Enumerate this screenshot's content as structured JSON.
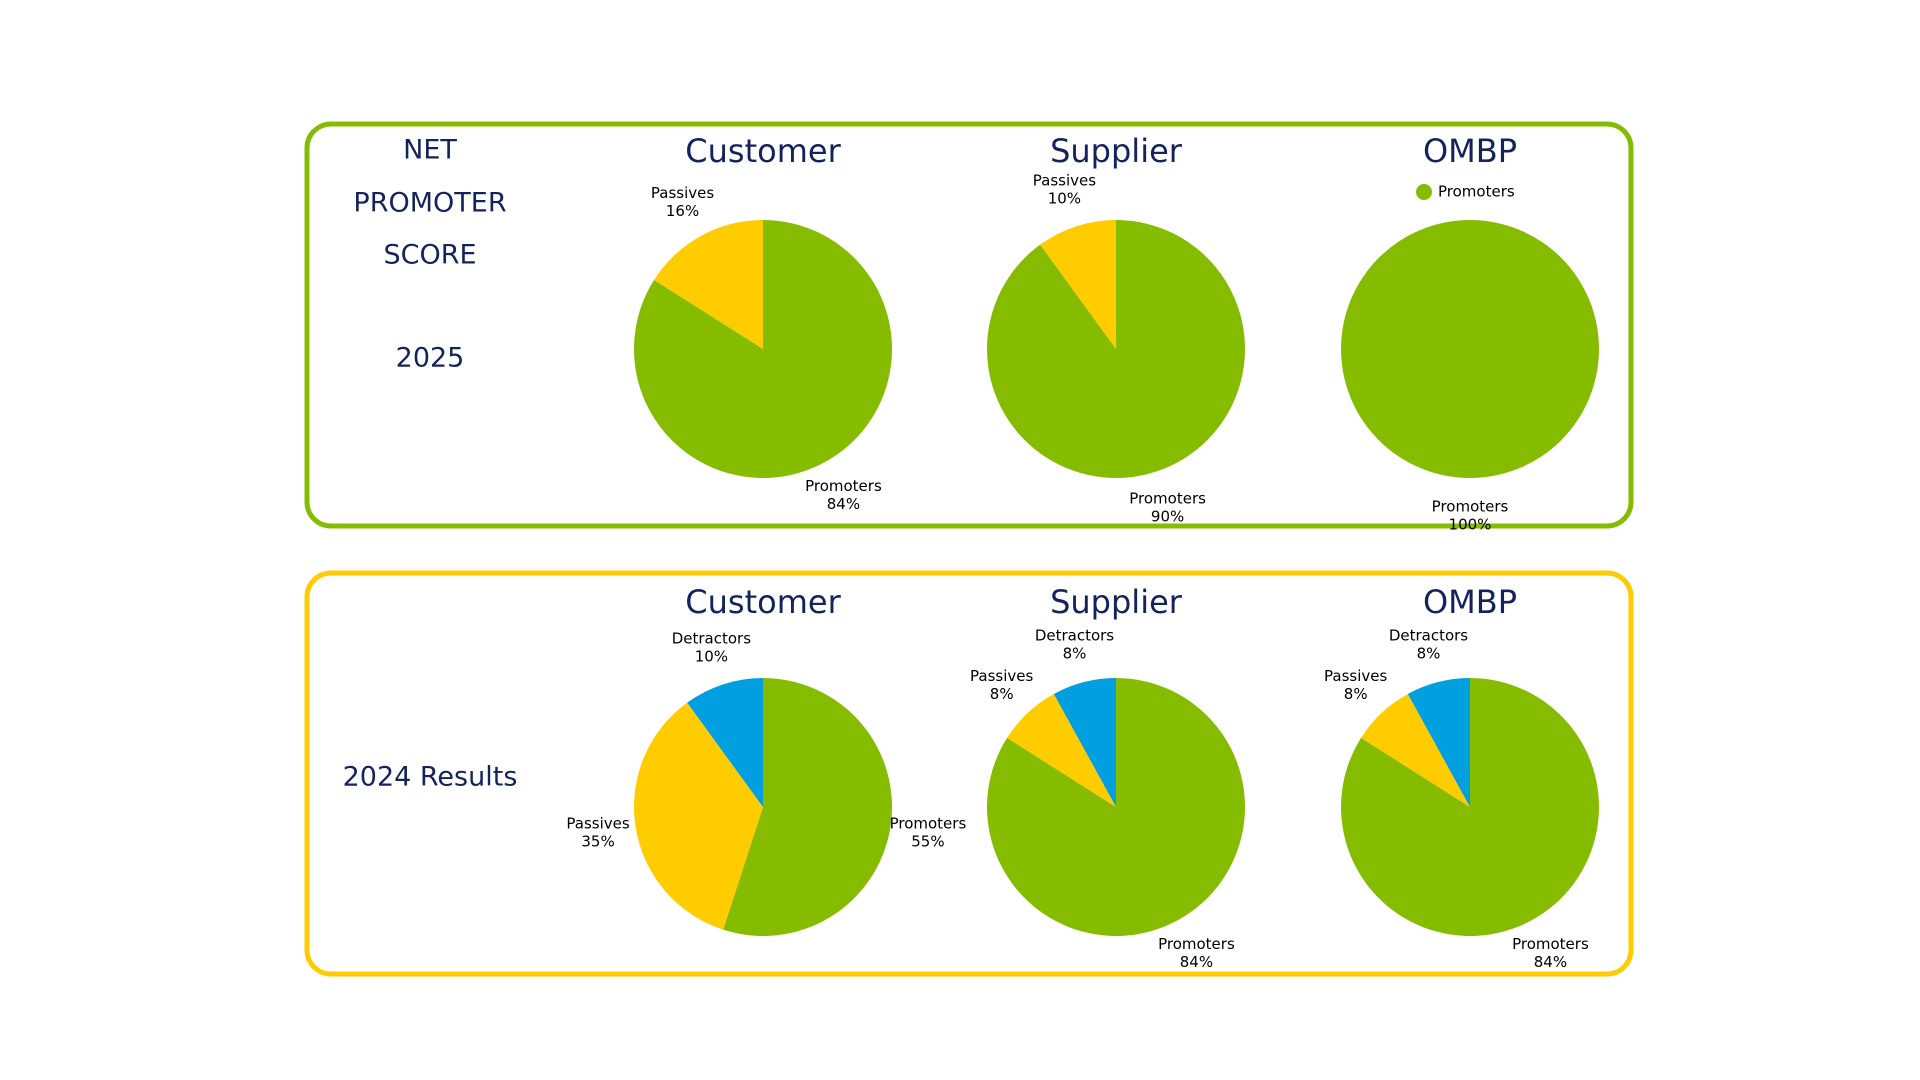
{
  "panels": [
    {
      "heading": [
        "NET",
        "PROMOTER",
        "SCORE"
      ],
      "subheading": "2025"
    },
    {
      "subheading": "2024 Results"
    }
  ],
  "chart_data": [
    {
      "type": "pie",
      "title": "Customer",
      "categories": [
        "Promoters",
        "Passives"
      ],
      "values": [
        84,
        16
      ],
      "value_labels": [
        "84%",
        "16%"
      ],
      "colors": [
        "#86bc00",
        "#ffcc00"
      ]
    },
    {
      "type": "pie",
      "title": "Supplier",
      "categories": [
        "Promoters",
        "Passives"
      ],
      "values": [
        90,
        10
      ],
      "value_labels": [
        "90%",
        "10%"
      ],
      "colors": [
        "#86bc00",
        "#ffcc00"
      ]
    },
    {
      "type": "pie",
      "title": "OMBP",
      "categories": [
        "Promoters"
      ],
      "values": [
        100
      ],
      "value_labels": [
        "100%"
      ],
      "colors": [
        "#86bc00"
      ],
      "legend": "top"
    },
    {
      "type": "pie",
      "title": "Customer",
      "categories": [
        "Promoters",
        "Passives",
        "Detractors"
      ],
      "values": [
        55,
        35,
        10
      ],
      "value_labels": [
        "55%",
        "35%",
        "10%"
      ],
      "colors": [
        "#86bc00",
        "#ffcc00",
        "#009fdf"
      ]
    },
    {
      "type": "pie",
      "title": "Supplier",
      "categories": [
        "Promoters",
        "Passives",
        "Detractors"
      ],
      "values": [
        84,
        8,
        8
      ],
      "value_labels": [
        "84%",
        "8%",
        "8%"
      ],
      "colors": [
        "#86bc00",
        "#ffcc00",
        "#009fdf"
      ]
    },
    {
      "type": "pie",
      "title": "OMBP",
      "categories": [
        "Promoters",
        "Passives",
        "Detractors"
      ],
      "values": [
        84,
        8,
        8
      ],
      "value_labels": [
        "84%",
        "8%",
        "8%"
      ],
      "colors": [
        "#86bc00",
        "#ffcc00",
        "#009fdf"
      ]
    }
  ]
}
